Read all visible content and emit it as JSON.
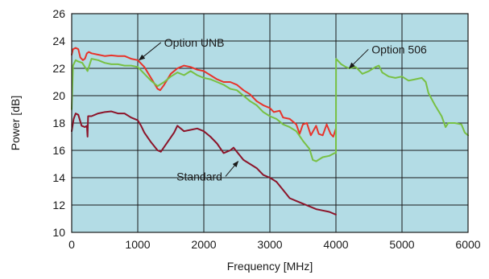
{
  "chart_data": {
    "type": "line",
    "title": "",
    "xlabel": "Frequency [MHz]",
    "ylabel": "Power [dB]",
    "xlim": [
      0,
      6000
    ],
    "ylim": [
      10,
      26
    ],
    "x_ticks": [
      0,
      1000,
      2000,
      3000,
      4000,
      5000,
      6000
    ],
    "y_ticks": [
      10,
      12,
      14,
      16,
      18,
      20,
      22,
      24,
      26
    ],
    "grid": true,
    "legend": "none",
    "colors": {
      "plot_background": "#b3dce5",
      "grid": "#1a1a1a",
      "option_unb": "#e8332a",
      "option_506": "#78c043",
      "standard": "#8c1429"
    },
    "series": [
      {
        "name": "Option UNB",
        "color": "#e8332a",
        "points": [
          [
            0,
            23.0
          ],
          [
            20,
            23.4
          ],
          [
            60,
            23.5
          ],
          [
            100,
            23.4
          ],
          [
            130,
            22.8
          ],
          [
            170,
            22.6
          ],
          [
            200,
            22.7
          ],
          [
            230,
            23.1
          ],
          [
            260,
            23.2
          ],
          [
            300,
            23.1
          ],
          [
            400,
            23.0
          ],
          [
            500,
            22.9
          ],
          [
            600,
            22.95
          ],
          [
            700,
            22.9
          ],
          [
            800,
            22.9
          ],
          [
            900,
            22.7
          ],
          [
            1000,
            22.6
          ],
          [
            1100,
            22.1
          ],
          [
            1200,
            21.3
          ],
          [
            1300,
            20.5
          ],
          [
            1340,
            20.4
          ],
          [
            1400,
            20.8
          ],
          [
            1500,
            21.6
          ],
          [
            1600,
            22.0
          ],
          [
            1700,
            22.2
          ],
          [
            1800,
            22.1
          ],
          [
            1900,
            21.9
          ],
          [
            2000,
            21.8
          ],
          [
            2100,
            21.5
          ],
          [
            2200,
            21.2
          ],
          [
            2300,
            21.0
          ],
          [
            2400,
            21.0
          ],
          [
            2500,
            20.8
          ],
          [
            2600,
            20.4
          ],
          [
            2700,
            20.1
          ],
          [
            2800,
            19.6
          ],
          [
            2900,
            19.3
          ],
          [
            3000,
            19.1
          ],
          [
            3060,
            18.8
          ],
          [
            3150,
            18.9
          ],
          [
            3200,
            18.4
          ],
          [
            3300,
            18.3
          ],
          [
            3400,
            17.9
          ],
          [
            3450,
            17.2
          ],
          [
            3500,
            17.9
          ],
          [
            3560,
            18.0
          ],
          [
            3620,
            17.1
          ],
          [
            3700,
            17.8
          ],
          [
            3740,
            17.2
          ],
          [
            3800,
            17.1
          ],
          [
            3860,
            17.9
          ],
          [
            3920,
            17.2
          ],
          [
            3960,
            17.0
          ],
          [
            4000,
            17.6
          ]
        ]
      },
      {
        "name": "Option 506",
        "color": "#78c043",
        "points": [
          [
            0,
            19.0
          ],
          [
            20,
            22.2
          ],
          [
            60,
            22.6
          ],
          [
            100,
            22.5
          ],
          [
            160,
            22.4
          ],
          [
            200,
            22.1
          ],
          [
            240,
            21.8
          ],
          [
            280,
            22.4
          ],
          [
            300,
            22.7
          ],
          [
            400,
            22.6
          ],
          [
            500,
            22.4
          ],
          [
            600,
            22.3
          ],
          [
            700,
            22.3
          ],
          [
            800,
            22.2
          ],
          [
            900,
            22.2
          ],
          [
            1000,
            22.1
          ],
          [
            1100,
            21.6
          ],
          [
            1200,
            21.1
          ],
          [
            1300,
            20.7
          ],
          [
            1400,
            21.0
          ],
          [
            1500,
            21.4
          ],
          [
            1600,
            21.7
          ],
          [
            1700,
            21.5
          ],
          [
            1800,
            21.8
          ],
          [
            1900,
            21.5
          ],
          [
            2000,
            21.3
          ],
          [
            2100,
            21.2
          ],
          [
            2200,
            21.0
          ],
          [
            2300,
            20.8
          ],
          [
            2400,
            20.5
          ],
          [
            2500,
            20.4
          ],
          [
            2600,
            20.0
          ],
          [
            2700,
            19.6
          ],
          [
            2800,
            19.3
          ],
          [
            2900,
            18.8
          ],
          [
            3000,
            18.5
          ],
          [
            3100,
            18.3
          ],
          [
            3200,
            17.9
          ],
          [
            3300,
            17.7
          ],
          [
            3400,
            17.4
          ],
          [
            3500,
            16.7
          ],
          [
            3600,
            16.1
          ],
          [
            3650,
            15.3
          ],
          [
            3700,
            15.2
          ],
          [
            3800,
            15.5
          ],
          [
            3900,
            15.6
          ],
          [
            3980,
            15.8
          ],
          [
            4000,
            15.8
          ],
          [
            4002,
            22.7
          ],
          [
            4080,
            22.3
          ],
          [
            4150,
            22.1
          ],
          [
            4200,
            22.0
          ],
          [
            4300,
            22.1
          ],
          [
            4400,
            21.6
          ],
          [
            4500,
            21.8
          ],
          [
            4600,
            22.1
          ],
          [
            4650,
            22.2
          ],
          [
            4700,
            21.7
          ],
          [
            4800,
            21.4
          ],
          [
            4900,
            21.3
          ],
          [
            5000,
            21.4
          ],
          [
            5100,
            21.1
          ],
          [
            5200,
            21.2
          ],
          [
            5300,
            21.3
          ],
          [
            5360,
            21.0
          ],
          [
            5400,
            20.2
          ],
          [
            5500,
            19.3
          ],
          [
            5600,
            18.5
          ],
          [
            5660,
            17.7
          ],
          [
            5700,
            18.0
          ],
          [
            5800,
            18.0
          ],
          [
            5900,
            17.9
          ],
          [
            5950,
            17.3
          ],
          [
            6000,
            17.1
          ]
        ]
      },
      {
        "name": "Standard",
        "color": "#8c1429",
        "points": [
          [
            0,
            17.4
          ],
          [
            30,
            18.3
          ],
          [
            60,
            18.7
          ],
          [
            100,
            18.6
          ],
          [
            150,
            17.8
          ],
          [
            200,
            17.7
          ],
          [
            230,
            17.8
          ],
          [
            240,
            17.0
          ],
          [
            248,
            18.5
          ],
          [
            300,
            18.5
          ],
          [
            400,
            18.7
          ],
          [
            500,
            18.8
          ],
          [
            600,
            18.85
          ],
          [
            700,
            18.7
          ],
          [
            800,
            18.7
          ],
          [
            900,
            18.4
          ],
          [
            1000,
            18.2
          ],
          [
            1050,
            17.8
          ],
          [
            1100,
            17.3
          ],
          [
            1200,
            16.6
          ],
          [
            1300,
            16.0
          ],
          [
            1350,
            15.9
          ],
          [
            1450,
            16.6
          ],
          [
            1550,
            17.3
          ],
          [
            1600,
            17.8
          ],
          [
            1700,
            17.4
          ],
          [
            1800,
            17.5
          ],
          [
            1900,
            17.6
          ],
          [
            2000,
            17.4
          ],
          [
            2100,
            17.0
          ],
          [
            2200,
            16.5
          ],
          [
            2300,
            15.8
          ],
          [
            2400,
            16.0
          ],
          [
            2450,
            16.2
          ],
          [
            2500,
            15.9
          ],
          [
            2600,
            15.3
          ],
          [
            2700,
            15.0
          ],
          [
            2800,
            14.7
          ],
          [
            2900,
            14.2
          ],
          [
            3000,
            14.0
          ],
          [
            3100,
            13.7
          ],
          [
            3200,
            13.1
          ],
          [
            3300,
            12.5
          ],
          [
            3400,
            12.3
          ],
          [
            3500,
            12.1
          ],
          [
            3600,
            11.9
          ],
          [
            3700,
            11.7
          ],
          [
            3800,
            11.6
          ],
          [
            3900,
            11.5
          ],
          [
            4000,
            11.3
          ]
        ]
      }
    ],
    "annotations": [
      {
        "text": "Option UNB",
        "arrow_to": [
          1020,
          22.6
        ],
        "text_anchor": [
          1400,
          23.6
        ],
        "text_align": "start"
      },
      {
        "text": "Option 506",
        "arrow_to": [
          4200,
          22.0
        ],
        "text_anchor": [
          4540,
          23.1
        ],
        "text_align": "start"
      },
      {
        "text": "Standard",
        "arrow_to": [
          2520,
          15.2
        ],
        "text_anchor": [
          2280,
          13.8
        ],
        "text_align": "end"
      }
    ]
  }
}
